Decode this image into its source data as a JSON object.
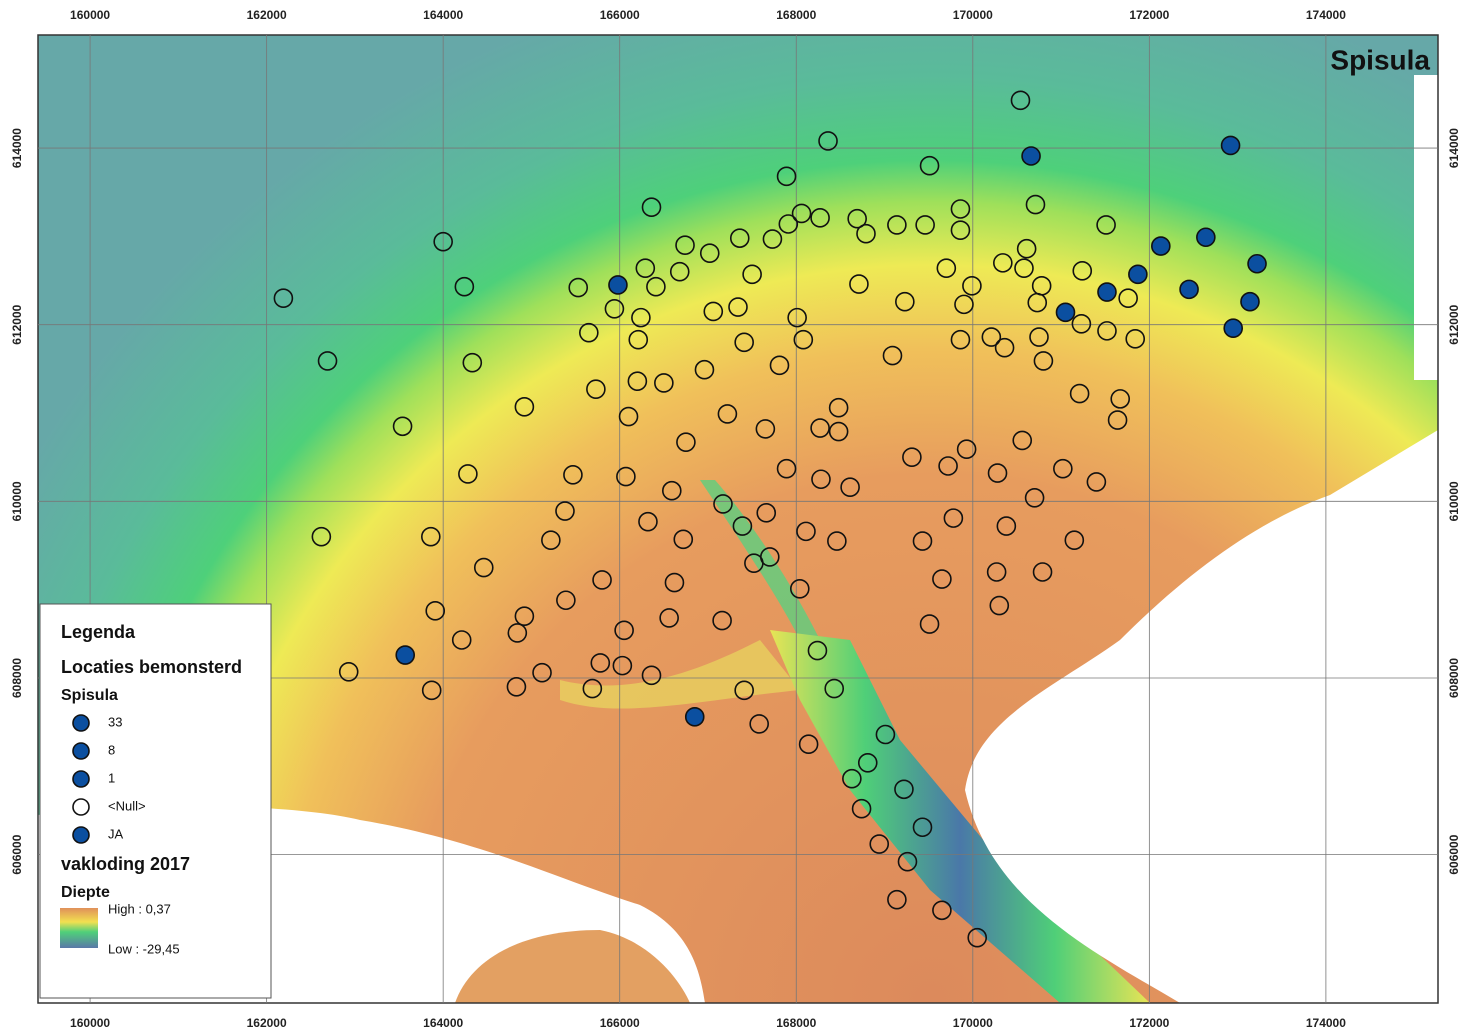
{
  "map": {
    "title": "Spisula",
    "xlim": [
      159410,
      175270
    ],
    "ylim": [
      604320,
      615280
    ],
    "xticks": [
      160000,
      162000,
      164000,
      166000,
      168000,
      170000,
      172000,
      174000
    ],
    "yticks": [
      606000,
      608000,
      610000,
      612000,
      614000
    ],
    "grid": true,
    "legend": {
      "title": "Legenda",
      "layer": "Locaties bemonsterd",
      "field": "Spisula",
      "items": [
        {
          "label": "33",
          "color": "#0b4fa0"
        },
        {
          "label": "8",
          "color": "#0b4fa0"
        },
        {
          "label": "1",
          "color": "#0b4fa0"
        },
        {
          "label": "<Null>",
          "color": "#ffffff"
        },
        {
          "label": "JA",
          "color": "#0b4fa0"
        }
      ],
      "raster": "vakloding 2017",
      "raster_field": "Diepte",
      "high": "High : 0,37",
      "low": "Low : -29,45"
    },
    "series": [
      {
        "name": "JA",
        "color": "#0b4fa0",
        "points": [
          [
            165980,
            612450
          ],
          [
            170660,
            613910
          ],
          [
            172920,
            614030
          ],
          [
            163570,
            608260
          ],
          [
            166850,
            607560
          ],
          [
            171050,
            612140
          ],
          [
            171520,
            612370
          ],
          [
            171870,
            612570
          ],
          [
            172130,
            612890
          ],
          [
            172450,
            612400
          ],
          [
            172640,
            612990
          ],
          [
            173140,
            612260
          ],
          [
            173220,
            612690
          ],
          [
            172950,
            611960
          ]
        ]
      },
      {
        "name": "<Null>",
        "color": "#ffffff",
        "points": [
          [
            162190,
            612300
          ],
          [
            162690,
            611590
          ],
          [
            164000,
            612940
          ],
          [
            164240,
            612430
          ],
          [
            164330,
            611570
          ],
          [
            163540,
            610850
          ],
          [
            164920,
            611070
          ],
          [
            164280,
            610310
          ],
          [
            162620,
            609600
          ],
          [
            163860,
            609600
          ],
          [
            164460,
            609250
          ],
          [
            163910,
            608760
          ],
          [
            162930,
            608070
          ],
          [
            164210,
            608430
          ],
          [
            163870,
            607860
          ],
          [
            164840,
            608510
          ],
          [
            164920,
            608700
          ],
          [
            164830,
            607900
          ],
          [
            165120,
            608060
          ],
          [
            165390,
            608880
          ],
          [
            165220,
            609560
          ],
          [
            165380,
            609890
          ],
          [
            165470,
            610300
          ],
          [
            165530,
            612420
          ],
          [
            165650,
            611910
          ],
          [
            165730,
            611270
          ],
          [
            165800,
            609110
          ],
          [
            165780,
            608170
          ],
          [
            165690,
            607880
          ],
          [
            165940,
            612180
          ],
          [
            166030,
            608140
          ],
          [
            166050,
            608540
          ],
          [
            166100,
            610960
          ],
          [
            166070,
            610280
          ],
          [
            166200,
            611360
          ],
          [
            166210,
            611830
          ],
          [
            166240,
            612080
          ],
          [
            166290,
            612640
          ],
          [
            166360,
            613330
          ],
          [
            166410,
            612430
          ],
          [
            166360,
            608030
          ],
          [
            166320,
            609770
          ],
          [
            166500,
            611340
          ],
          [
            166590,
            610120
          ],
          [
            166620,
            609080
          ],
          [
            166560,
            608680
          ],
          [
            166680,
            612600
          ],
          [
            166740,
            612900
          ],
          [
            166720,
            609570
          ],
          [
            166750,
            610670
          ],
          [
            166960,
            611490
          ],
          [
            167020,
            612810
          ],
          [
            167060,
            612150
          ],
          [
            167170,
            609970
          ],
          [
            167220,
            610990
          ],
          [
            167160,
            608650
          ],
          [
            167360,
            612980
          ],
          [
            167340,
            612200
          ],
          [
            167390,
            609720
          ],
          [
            167410,
            611800
          ],
          [
            167410,
            607860
          ],
          [
            167500,
            612570
          ],
          [
            167520,
            609300
          ],
          [
            167580,
            607480
          ],
          [
            167650,
            610820
          ],
          [
            167660,
            609870
          ],
          [
            167700,
            609370
          ],
          [
            167730,
            612970
          ],
          [
            167810,
            611540
          ],
          [
            167890,
            613680
          ],
          [
            167890,
            610370
          ],
          [
            167910,
            613140
          ],
          [
            168010,
            612080
          ],
          [
            168040,
            609010
          ],
          [
            168080,
            611830
          ],
          [
            168110,
            609660
          ],
          [
            168140,
            607250
          ],
          [
            168060,
            613260
          ],
          [
            168240,
            608310
          ],
          [
            168270,
            613210
          ],
          [
            168270,
            610830
          ],
          [
            168280,
            610250
          ],
          [
            168360,
            614080
          ],
          [
            168430,
            607880
          ],
          [
            168480,
            611060
          ],
          [
            168480,
            610790
          ],
          [
            168460,
            609550
          ],
          [
            168610,
            610160
          ],
          [
            168630,
            606860
          ],
          [
            168690,
            613200
          ],
          [
            168710,
            612460
          ],
          [
            168740,
            606520
          ],
          [
            168790,
            613030
          ],
          [
            168810,
            607040
          ],
          [
            168940,
            606120
          ],
          [
            169010,
            607360
          ],
          [
            169090,
            611650
          ],
          [
            169140,
            613130
          ],
          [
            169140,
            605490
          ],
          [
            169230,
            612260
          ],
          [
            169220,
            606740
          ],
          [
            169260,
            605920
          ],
          [
            169310,
            610500
          ],
          [
            169430,
            606310
          ],
          [
            169430,
            609550
          ],
          [
            169460,
            613130
          ],
          [
            169510,
            613800
          ],
          [
            169510,
            608610
          ],
          [
            169650,
            605370
          ],
          [
            169650,
            609120
          ],
          [
            169700,
            612640
          ],
          [
            169720,
            610400
          ],
          [
            169780,
            609810
          ],
          [
            169860,
            613310
          ],
          [
            169860,
            613070
          ],
          [
            169860,
            611830
          ],
          [
            169900,
            612230
          ],
          [
            169930,
            610590
          ],
          [
            169990,
            612440
          ],
          [
            170050,
            605060
          ],
          [
            170210,
            611860
          ],
          [
            170270,
            609200
          ],
          [
            170280,
            610320
          ],
          [
            170300,
            608820
          ],
          [
            170340,
            612700
          ],
          [
            170360,
            611740
          ],
          [
            170380,
            609720
          ],
          [
            170540,
            614540
          ],
          [
            170560,
            610690
          ],
          [
            170580,
            612640
          ],
          [
            170610,
            612860
          ],
          [
            170700,
            610040
          ],
          [
            170710,
            613360
          ],
          [
            170750,
            611860
          ],
          [
            170730,
            612250
          ],
          [
            170780,
            612440
          ],
          [
            170790,
            609200
          ],
          [
            170800,
            611590
          ],
          [
            171020,
            610370
          ],
          [
            171150,
            609560
          ],
          [
            171210,
            611220
          ],
          [
            171230,
            612010
          ],
          [
            171240,
            612610
          ],
          [
            171400,
            610220
          ],
          [
            171510,
            613130
          ],
          [
            171520,
            611930
          ],
          [
            171640,
            610920
          ],
          [
            171670,
            611160
          ],
          [
            171760,
            612300
          ],
          [
            171840,
            611840
          ]
        ]
      }
    ]
  }
}
